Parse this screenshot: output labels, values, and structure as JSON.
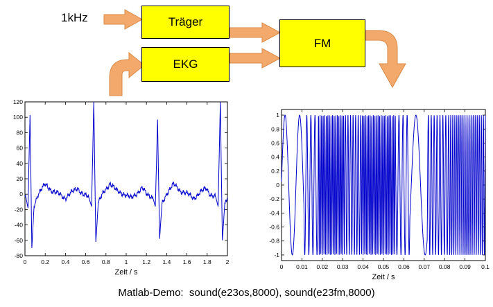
{
  "page": {
    "background": "#FFFFFF"
  },
  "diagram": {
    "input_label": "1kHz",
    "boxes": {
      "traeger": "Träger",
      "ekg": "EKG",
      "fm": "FM"
    },
    "box_fill": "#FFFF00",
    "box_border": "#000000",
    "arrow_fill": "#F4A96C",
    "arrow_border": "#D98A46"
  },
  "caption": "Matlab-Demo:  sound(e23os,8000), sound(e23fm,8000)",
  "chart_data": [
    {
      "id": "ekg-signal",
      "type": "line",
      "title": "",
      "xlabel": "Zeit / s",
      "ylabel": "",
      "xlim": [
        0,
        2
      ],
      "ylim": [
        -80,
        120
      ],
      "xtick_values": [
        0,
        0.2,
        0.4,
        0.6,
        0.8,
        1,
        1.2,
        1.4,
        1.6,
        1.8,
        2
      ],
      "xtick_labels": [
        "0",
        "0.2",
        "0.4",
        "0.6",
        "0.8",
        "1",
        "1.2",
        "1.4",
        "1.6",
        "1.8",
        "2"
      ],
      "ytick_values": [
        -80,
        -60,
        -40,
        -20,
        0,
        20,
        40,
        60,
        80,
        100,
        120
      ],
      "ytick_labels": [
        "-80",
        "-60",
        "-40",
        "-20",
        "0",
        "20",
        "40",
        "60",
        "80",
        "100",
        "120"
      ],
      "line_color": "#0000CC",
      "series_name": "EKG",
      "noise_amplitude": 2.2,
      "keypoints": [
        [
          0,
          -3
        ],
        [
          0.012,
          -6
        ],
        [
          0.03,
          -18
        ],
        [
          0.05,
          103
        ],
        [
          0.068,
          -70
        ],
        [
          0.09,
          -14
        ],
        [
          0.13,
          0
        ],
        [
          0.2,
          13
        ],
        [
          0.27,
          4
        ],
        [
          0.34,
          0
        ],
        [
          0.4,
          -5
        ],
        [
          0.46,
          2
        ],
        [
          0.52,
          8
        ],
        [
          0.57,
          0
        ],
        [
          0.63,
          -4
        ],
        [
          0.658,
          -16
        ],
        [
          0.68,
          120
        ],
        [
          0.7,
          -62
        ],
        [
          0.724,
          -12
        ],
        [
          0.77,
          1
        ],
        [
          0.84,
          14
        ],
        [
          0.91,
          4
        ],
        [
          0.98,
          0
        ],
        [
          1.05,
          -5
        ],
        [
          1.11,
          2
        ],
        [
          1.16,
          8
        ],
        [
          1.2,
          0
        ],
        [
          1.262,
          -4
        ],
        [
          1.288,
          -16
        ],
        [
          1.31,
          97
        ],
        [
          1.33,
          -58
        ],
        [
          1.354,
          -12
        ],
        [
          1.4,
          1
        ],
        [
          1.47,
          13
        ],
        [
          1.54,
          4
        ],
        [
          1.61,
          0
        ],
        [
          1.67,
          -5
        ],
        [
          1.73,
          2
        ],
        [
          1.79,
          8
        ],
        [
          1.83,
          0
        ],
        [
          1.885,
          -4
        ],
        [
          1.908,
          -16
        ],
        [
          1.93,
          120
        ],
        [
          1.95,
          -60
        ],
        [
          1.974,
          -12
        ],
        [
          2,
          -4
        ]
      ]
    },
    {
      "id": "fm-signal",
      "type": "line",
      "title": "",
      "xlabel": "Zeit / s",
      "ylabel": "",
      "xlim": [
        0,
        0.1
      ],
      "ylim": [
        -1.08,
        1.08
      ],
      "xtick_values": [
        0,
        0.01,
        0.02,
        0.03,
        0.04,
        0.05,
        0.06,
        0.07,
        0.08,
        0.09,
        0.1
      ],
      "xtick_labels": [
        "0",
        "0.01",
        "0.02",
        "0.03",
        "0.04",
        "0.05",
        "0.06",
        "0.07",
        "0.08",
        "0.09",
        "0.1"
      ],
      "ytick_values": [
        -1,
        -0.8,
        -0.6,
        -0.4,
        -0.2,
        0,
        0.2,
        0.4,
        0.6,
        0.8,
        1
      ],
      "ytick_labels": [
        "-1",
        "-0.8",
        "-0.6",
        "-0.4",
        "-0.2",
        "0",
        "0.2",
        "0.4",
        "0.6",
        "0.8",
        "1"
      ],
      "line_color": "#0000CC",
      "series_name": "FM",
      "freq_segments": [
        [
          0,
          0.011,
          140
        ],
        [
          0.011,
          0.018,
          500
        ],
        [
          0.018,
          0.031,
          1300
        ],
        [
          0.031,
          0.039,
          800
        ],
        [
          0.039,
          0.056,
          1300
        ],
        [
          0.056,
          0.063,
          500
        ],
        [
          0.063,
          0.0715,
          110
        ],
        [
          0.0715,
          0.082,
          700
        ],
        [
          0.082,
          0.1,
          1000
        ]
      ]
    }
  ]
}
